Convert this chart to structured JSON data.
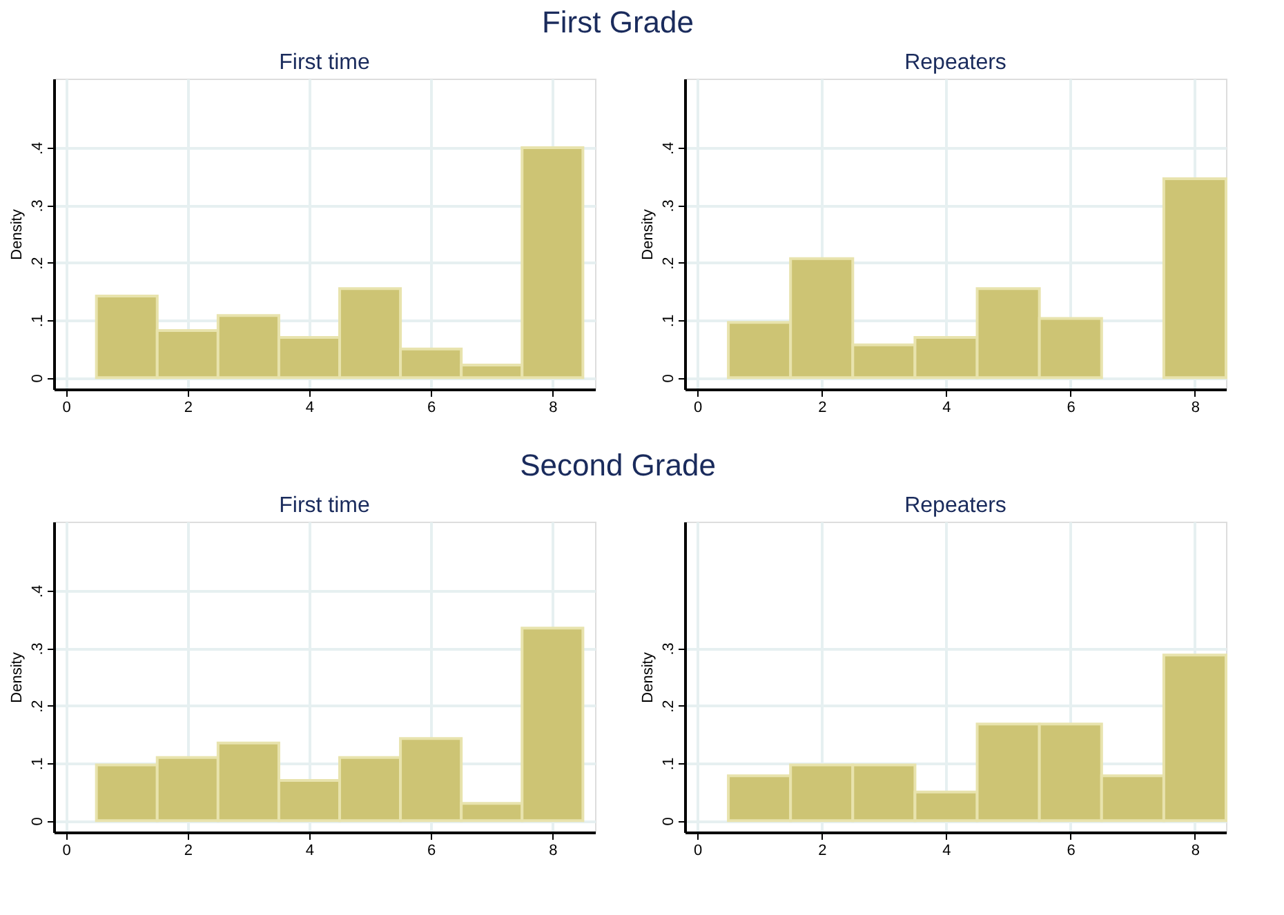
{
  "chart_data": [
    {
      "type": "histogram",
      "title": "First time",
      "annotations": [
        "First Grade"
      ],
      "ylabel": "Density",
      "bins": [
        0.5,
        1.5,
        2.5,
        3.5,
        4.5,
        5.5,
        6.5,
        7.5,
        8.5
      ],
      "values": [
        0.142,
        0.082,
        0.108,
        0.07,
        0.155,
        0.05,
        0.022,
        0.4
      ],
      "color": "#cdc474",
      "xlim": [
        -0.2,
        8.7
      ],
      "xticks": [
        0,
        2,
        4,
        6,
        8
      ],
      "ylim": [
        -0.02,
        0.52
      ],
      "yticks": [
        {
          "value": 0,
          "label": "0"
        },
        {
          "value": 0.1,
          "label": ".1"
        },
        {
          "value": 0.2,
          "label": ".2"
        },
        {
          "value": 0.3,
          "label": ".3"
        },
        {
          "value": 0.4,
          "label": ".4"
        }
      ],
      "grid": true
    },
    {
      "type": "histogram",
      "title": "Repeaters",
      "ylabel": "Density",
      "bins": [
        0.5,
        1.5,
        2.5,
        3.5,
        4.5,
        5.5,
        6.5,
        7.5,
        8.5
      ],
      "values": [
        0.096,
        0.207,
        0.057,
        0.07,
        0.155,
        0.103,
        0,
        0.346
      ],
      "color": "#cdc474",
      "xlim": [
        -0.2,
        8.5
      ],
      "xticks": [
        0,
        2,
        4,
        6,
        8
      ],
      "ylim": [
        -0.02,
        0.52
      ],
      "yticks": [
        {
          "value": 0,
          "label": "0"
        },
        {
          "value": 0.1,
          "label": ".1"
        },
        {
          "value": 0.2,
          "label": ".2"
        },
        {
          "value": 0.3,
          "label": ".3"
        },
        {
          "value": 0.4,
          "label": ".4"
        }
      ],
      "grid": true
    },
    {
      "type": "histogram",
      "title": "First time",
      "annotations": [
        "Second Grade"
      ],
      "ylabel": "Density",
      "bins": [
        0.5,
        1.5,
        2.5,
        3.5,
        4.5,
        5.5,
        6.5,
        7.5,
        8.5
      ],
      "values": [
        0.097,
        0.11,
        0.135,
        0.07,
        0.11,
        0.143,
        0.03,
        0.335
      ],
      "color": "#cdc474",
      "xlim": [
        -0.2,
        8.7
      ],
      "xticks": [
        0,
        2,
        4,
        6,
        8
      ],
      "ylim": [
        -0.02,
        0.52
      ],
      "yticks": [
        {
          "value": 0,
          "label": "0"
        },
        {
          "value": 0.1,
          "label": ".1"
        },
        {
          "value": 0.2,
          "label": ".2"
        },
        {
          "value": 0.3,
          "label": ".3"
        },
        {
          "value": 0.4,
          "label": ".4"
        }
      ],
      "grid": true
    },
    {
      "type": "histogram",
      "title": "Repeaters",
      "ylabel": "Density",
      "bins": [
        0.5,
        1.5,
        2.5,
        3.5,
        4.5,
        5.5,
        6.5,
        7.5,
        8.5
      ],
      "values": [
        0.078,
        0.097,
        0.097,
        0.05,
        0.168,
        0.168,
        0.078,
        0.288
      ],
      "color": "#cdc474",
      "xlim": [
        -0.2,
        8.5
      ],
      "xticks": [
        0,
        2,
        4,
        6,
        8
      ],
      "ylim": [
        -0.02,
        0.52
      ],
      "yticks": [
        {
          "value": 0,
          "label": "0"
        },
        {
          "value": 0.1,
          "label": ".1"
        },
        {
          "value": 0.2,
          "label": ".2"
        },
        {
          "value": 0.3,
          "label": ".3"
        }
      ],
      "grid": true
    }
  ]
}
